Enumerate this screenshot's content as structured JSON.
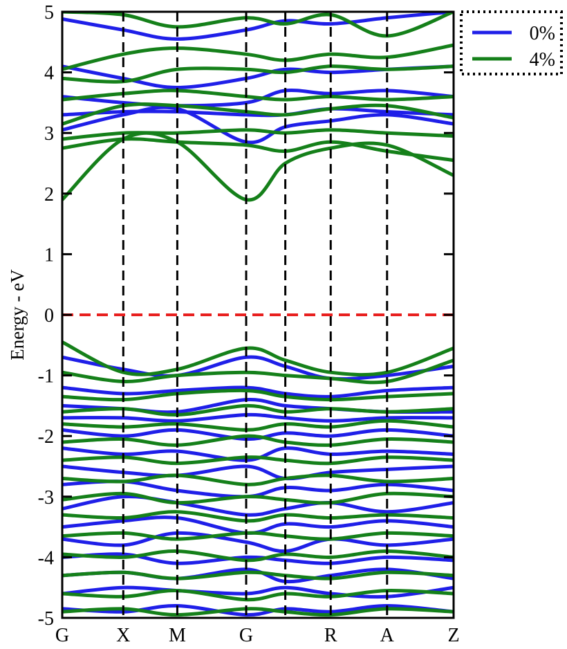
{
  "chart_data": {
    "type": "line",
    "title": "",
    "xlabel": "",
    "ylabel": "Energy - eV",
    "ylim": [
      -5,
      5
    ],
    "yticks": [
      5,
      4,
      3,
      2,
      1,
      0,
      -1,
      -2,
      -3,
      -4,
      -5
    ],
    "kpath": [
      "G",
      "X",
      "M",
      "G",
      "",
      "R",
      "A",
      "Z"
    ],
    "kpath_positions": [
      0,
      0.156,
      0.294,
      0.47,
      0.57,
      0.686,
      0.83,
      1.0
    ],
    "fermi_level": 0,
    "grid": false,
    "legend_position": "top-right",
    "colors": {
      "0%": "#1f1fe8",
      "4%": "#15801a",
      "fermi": "#e8201f",
      "kline": "#000000"
    },
    "series": [
      {
        "name": "0%",
        "bands": [
          [
            4.88,
            4.7,
            4.55,
            4.7,
            4.85,
            4.8,
            4.9,
            5.0
          ],
          [
            4.1,
            3.9,
            3.75,
            3.9,
            4.05,
            4.0,
            4.05,
            4.1
          ],
          [
            3.6,
            3.5,
            3.45,
            3.5,
            3.7,
            3.65,
            3.7,
            3.6
          ],
          [
            3.3,
            3.35,
            3.35,
            3.3,
            3.3,
            3.4,
            3.35,
            3.3
          ],
          [
            3.05,
            3.3,
            3.4,
            2.85,
            3.1,
            3.2,
            3.3,
            3.15
          ],
          [
            -0.7,
            -0.9,
            -1.0,
            -0.7,
            -0.85,
            -1.05,
            -1.0,
            -0.85
          ],
          [
            -1.2,
            -1.3,
            -1.25,
            -1.2,
            -1.3,
            -1.35,
            -1.25,
            -1.2
          ],
          [
            -1.5,
            -1.55,
            -1.6,
            -1.4,
            -1.5,
            -1.55,
            -1.6,
            -1.6
          ],
          [
            -1.7,
            -1.7,
            -1.75,
            -1.65,
            -1.7,
            -1.75,
            -1.7,
            -1.7
          ],
          [
            -1.9,
            -2.0,
            -1.9,
            -2.05,
            -1.95,
            -2.0,
            -1.9,
            -2.0
          ],
          [
            -2.2,
            -2.3,
            -2.25,
            -2.4,
            -2.2,
            -2.3,
            -2.25,
            -2.3
          ],
          [
            -2.5,
            -2.6,
            -2.65,
            -2.5,
            -2.7,
            -2.6,
            -2.55,
            -2.5
          ],
          [
            -2.8,
            -2.75,
            -2.9,
            -3.0,
            -2.85,
            -2.9,
            -2.8,
            -2.9
          ],
          [
            -3.2,
            -3.0,
            -3.1,
            -3.3,
            -3.2,
            -3.1,
            -3.25,
            -3.1
          ],
          [
            -3.5,
            -3.4,
            -3.35,
            -3.6,
            -3.45,
            -3.5,
            -3.4,
            -3.5
          ],
          [
            -3.7,
            -3.8,
            -3.6,
            -3.75,
            -3.9,
            -3.7,
            -3.8,
            -3.7
          ],
          [
            -4.0,
            -3.95,
            -4.1,
            -4.0,
            -4.05,
            -4.1,
            -4.0,
            -4.05
          ],
          [
            -4.3,
            -4.25,
            -4.35,
            -4.2,
            -4.4,
            -4.3,
            -4.2,
            -4.35
          ],
          [
            -4.6,
            -4.5,
            -4.55,
            -4.6,
            -4.5,
            -4.6,
            -4.65,
            -4.5
          ],
          [
            -4.85,
            -4.9,
            -4.8,
            -4.95,
            -4.85,
            -4.9,
            -4.8,
            -4.9
          ]
        ]
      },
      {
        "name": "4%",
        "bands": [
          [
            5.0,
            4.95,
            4.75,
            4.9,
            4.8,
            4.95,
            4.6,
            5.0
          ],
          [
            4.05,
            4.3,
            4.4,
            4.3,
            4.2,
            4.3,
            4.25,
            4.45
          ],
          [
            3.9,
            3.85,
            4.05,
            4.05,
            4.0,
            4.1,
            4.05,
            4.1
          ],
          [
            3.55,
            3.65,
            3.7,
            3.6,
            3.55,
            3.6,
            3.55,
            3.6
          ],
          [
            3.15,
            3.45,
            3.45,
            3.35,
            3.3,
            3.4,
            3.45,
            3.25
          ],
          [
            2.9,
            3.0,
            3.0,
            3.05,
            3.0,
            3.05,
            3.0,
            2.95
          ],
          [
            2.75,
            2.9,
            2.85,
            2.8,
            2.7,
            2.85,
            2.7,
            2.55
          ],
          [
            1.9,
            2.9,
            2.85,
            1.9,
            2.5,
            2.75,
            2.8,
            2.3
          ],
          [
            -0.45,
            -0.95,
            -0.9,
            -0.55,
            -0.75,
            -0.95,
            -0.95,
            -0.55
          ],
          [
            -0.95,
            -1.1,
            -1.0,
            -0.95,
            -1.0,
            -1.05,
            -1.1,
            -0.75
          ],
          [
            -1.35,
            -1.4,
            -1.3,
            -1.25,
            -1.35,
            -1.4,
            -1.35,
            -1.3
          ],
          [
            -1.6,
            -1.55,
            -1.65,
            -1.5,
            -1.6,
            -1.55,
            -1.6,
            -1.55
          ],
          [
            -1.8,
            -1.85,
            -1.8,
            -1.9,
            -1.8,
            -1.85,
            -1.75,
            -1.85
          ],
          [
            -2.1,
            -2.05,
            -2.15,
            -2.0,
            -2.1,
            -2.15,
            -2.05,
            -2.1
          ],
          [
            -2.4,
            -2.35,
            -2.45,
            -2.35,
            -2.4,
            -2.45,
            -2.35,
            -2.4
          ],
          [
            -2.7,
            -2.75,
            -2.65,
            -2.8,
            -2.7,
            -2.65,
            -2.75,
            -2.7
          ],
          [
            -3.05,
            -2.95,
            -3.1,
            -3.0,
            -3.05,
            -3.1,
            -2.95,
            -3.0
          ],
          [
            -3.3,
            -3.35,
            -3.25,
            -3.4,
            -3.3,
            -3.35,
            -3.3,
            -3.35
          ],
          [
            -3.65,
            -3.6,
            -3.7,
            -3.6,
            -3.65,
            -3.7,
            -3.6,
            -3.65
          ],
          [
            -3.95,
            -4.0,
            -3.9,
            -4.05,
            -3.95,
            -4.0,
            -3.9,
            -4.0
          ],
          [
            -4.3,
            -4.25,
            -4.35,
            -4.25,
            -4.3,
            -4.35,
            -4.25,
            -4.3
          ],
          [
            -4.6,
            -4.65,
            -4.55,
            -4.7,
            -4.6,
            -4.65,
            -4.55,
            -4.6
          ],
          [
            -4.9,
            -4.85,
            -4.95,
            -4.85,
            -4.9,
            -4.95,
            -4.85,
            -4.9
          ]
        ]
      }
    ]
  }
}
